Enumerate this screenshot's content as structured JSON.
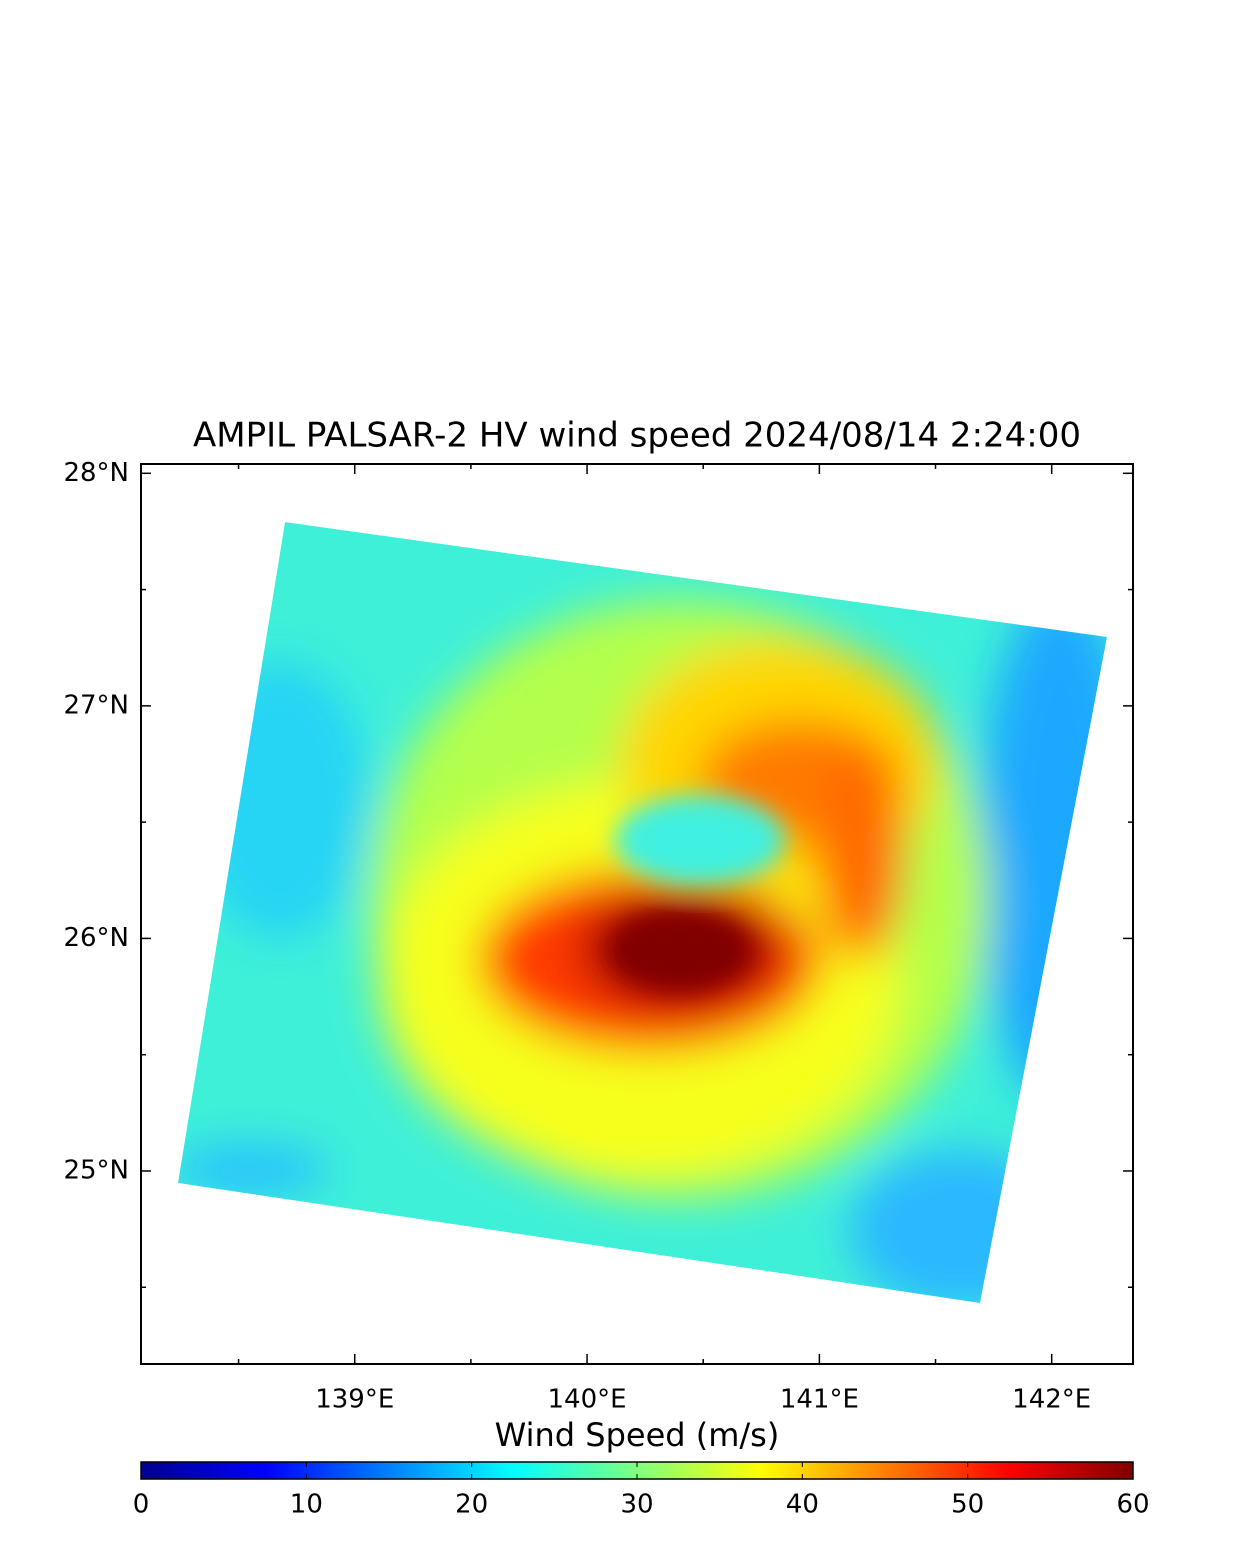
{
  "chart_data": {
    "type": "map",
    "title": "AMPIL  PALSAR-2 HV  wind speed 2024/08/14 2:24:00",
    "xlim": [
      138.08,
      142.35
    ],
    "ylim": [
      24.17,
      28.04
    ],
    "xticks": [
      {
        "value": 139,
        "label": "139°E"
      },
      {
        "value": 140,
        "label": "140°E"
      },
      {
        "value": 141,
        "label": "141°E"
      },
      {
        "value": 142,
        "label": "142°E"
      }
    ],
    "yticks": [
      {
        "value": 25,
        "label": "25°N"
      },
      {
        "value": 26,
        "label": "26°N"
      },
      {
        "value": 27,
        "label": "27°N"
      },
      {
        "value": 28,
        "label": "28°N"
      }
    ],
    "xminorticks": [
      138.5,
      139.5,
      140.5,
      141.5
    ],
    "yminorticks": [
      24.5,
      25.5,
      26.5,
      27.5
    ],
    "colorbar": {
      "label": "Wind Speed (m/s)",
      "lim": [
        0,
        60
      ],
      "ticks": [
        0,
        10,
        20,
        30,
        40,
        50,
        60
      ],
      "colors": [
        "#00008f",
        "#0000ff",
        "#0080ff",
        "#00ffff",
        "#80ff80",
        "#ffff00",
        "#ff8000",
        "#ff0000",
        "#800000"
      ]
    }
  }
}
